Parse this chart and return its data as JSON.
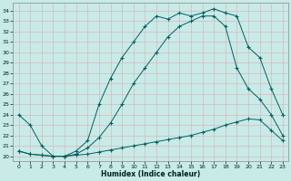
{
  "xlabel": "Humidex (Indice chaleur)",
  "background_color": "#c8ebe8",
  "grid_color": "#b0d8d4",
  "line_color": "#006060",
  "xlim": [
    -0.5,
    23.5
  ],
  "ylim": [
    19.5,
    34.8
  ],
  "xticks": [
    0,
    1,
    2,
    3,
    4,
    5,
    6,
    7,
    8,
    9,
    10,
    11,
    12,
    13,
    14,
    15,
    16,
    17,
    18,
    19,
    20,
    21,
    22,
    23
  ],
  "yticks": [
    20,
    21,
    22,
    23,
    24,
    25,
    26,
    27,
    28,
    29,
    30,
    31,
    32,
    33,
    34
  ],
  "curve1_x": [
    0,
    1,
    2,
    3,
    4,
    5,
    6,
    7,
    8,
    9,
    10,
    11,
    12,
    13,
    14,
    15,
    16,
    17,
    18,
    19,
    20,
    21,
    22,
    23
  ],
  "curve1_y": [
    24.0,
    23.0,
    21.0,
    20.0,
    20.0,
    20.5,
    21.5,
    25.0,
    27.5,
    29.5,
    31.0,
    32.5,
    33.5,
    33.2,
    33.8,
    33.5,
    33.8,
    34.2,
    33.8,
    33.5,
    30.5,
    29.5,
    26.5,
    24.0
  ],
  "curve2_x": [
    0,
    1,
    2,
    3,
    4,
    5,
    6,
    7,
    8,
    9,
    10,
    11,
    12,
    13,
    14,
    15,
    16,
    17,
    18,
    19,
    20,
    21,
    22,
    23
  ],
  "curve2_y": [
    20.5,
    20.2,
    20.1,
    20.0,
    20.0,
    20.1,
    20.2,
    20.4,
    20.6,
    20.8,
    21.0,
    21.2,
    21.4,
    21.6,
    21.8,
    22.0,
    22.3,
    22.6,
    23.0,
    23.3,
    23.6,
    23.5,
    22.5,
    21.5
  ],
  "curve3_x": [
    0,
    1,
    2,
    3,
    4,
    5,
    6,
    7,
    8,
    9,
    10,
    11,
    12,
    13,
    14,
    15,
    16,
    17,
    18,
    19,
    20,
    21,
    22,
    23
  ],
  "curve3_y": [
    20.5,
    20.2,
    20.1,
    20.0,
    20.0,
    20.2,
    20.8,
    21.8,
    23.2,
    25.0,
    27.0,
    28.5,
    30.0,
    31.5,
    32.5,
    33.0,
    33.5,
    33.5,
    32.5,
    28.5,
    26.5,
    25.5,
    24.0,
    22.0
  ]
}
